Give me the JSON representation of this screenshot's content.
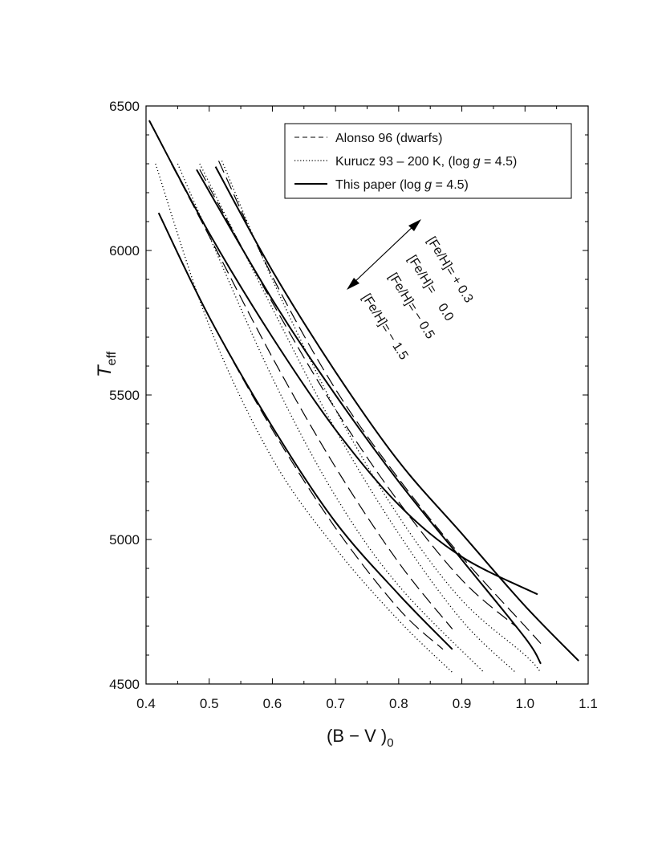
{
  "chart_data": {
    "type": "line",
    "xlabel": "(B − V )",
    "xlabel_sub": "0",
    "ylabel": "T",
    "ylabel_sub": "eff",
    "xlim": [
      0.4,
      1.1
    ],
    "ylim": [
      4500,
      6500
    ],
    "xticks": [
      "0.4",
      "0.5",
      "0.6",
      "0.7",
      "0.8",
      "0.9",
      "1.0",
      "1.1"
    ],
    "yticks": [
      "4500",
      "5000",
      "5500",
      "6000",
      "6500"
    ],
    "grid": false,
    "legend_position": "top-right",
    "legend": [
      {
        "style": "dashed",
        "label_parts": [
          "Alonso 96 (dwarfs)"
        ]
      },
      {
        "style": "dotted",
        "label_parts": [
          "Kurucz 93 – 200 K, (log ",
          "g",
          " = 4.5)"
        ]
      },
      {
        "style": "solid",
        "label_parts": [
          "This paper (log ",
          "g",
          " = 4.5)"
        ]
      }
    ],
    "annotations": [
      "[Fe/H]= + 0.3",
      "[Fe/H]=    0.0",
      "[Fe/H]= − 0.5",
      "[Fe/H]= − 1.5"
    ],
    "series": [
      {
        "group": "This paper",
        "style": "solid",
        "metallicity": "+0.3",
        "x": [
          0.51,
          0.6,
          0.7,
          0.8,
          0.9,
          1.0,
          1.085
        ],
        "y": [
          6290,
          5930,
          5580,
          5270,
          5020,
          4770,
          4580
        ]
      },
      {
        "group": "This paper",
        "style": "solid",
        "metallicity": "0.0",
        "x": [
          0.48,
          0.6,
          0.7,
          0.8,
          0.9,
          1.0,
          1.025
        ],
        "y": [
          6280,
          5830,
          5500,
          5200,
          4930,
          4660,
          4570
        ]
      },
      {
        "group": "This paper",
        "style": "solid",
        "metallicity": "-0.5",
        "x": [
          0.405,
          0.5,
          0.6,
          0.7,
          0.8,
          0.9,
          1.02
        ],
        "y": [
          6450,
          6060,
          5700,
          5380,
          5120,
          4940,
          4810
        ]
      },
      {
        "group": "This paper",
        "style": "solid",
        "metallicity": "-1.5",
        "x": [
          0.42,
          0.5,
          0.6,
          0.7,
          0.8,
          0.885
        ],
        "y": [
          6130,
          5770,
          5390,
          5060,
          4810,
          4620
        ]
      },
      {
        "group": "Alonso 96",
        "style": "dashed",
        "metallicity": "+0.3",
        "x": [
          0.515,
          0.6,
          0.7,
          0.8,
          0.9,
          1.0,
          1.025
        ],
        "y": [
          6310,
          5910,
          5520,
          5210,
          4940,
          4700,
          4640
        ]
      },
      {
        "group": "Alonso 96",
        "style": "dashed",
        "metallicity": "0.0",
        "x": [
          0.485,
          0.6,
          0.7,
          0.8,
          0.9,
          0.985
        ],
        "y": [
          6280,
          5820,
          5450,
          5130,
          4860,
          4700
        ]
      },
      {
        "group": "Alonso 96",
        "style": "dashed",
        "metallicity": "-0.5",
        "x": [
          0.44,
          0.5,
          0.6,
          0.7,
          0.8,
          0.885
        ],
        "y": [
          6300,
          6050,
          5630,
          5250,
          4920,
          4690
        ]
      },
      {
        "group": "Alonso 96",
        "style": "dashed",
        "metallicity": "-1.5",
        "x": [
          0.42,
          0.5,
          0.6,
          0.7,
          0.8,
          0.87
        ],
        "y": [
          6130,
          5770,
          5380,
          5040,
          4760,
          4620
        ]
      },
      {
        "group": "Kurucz 93 − 200 K",
        "style": "dotted",
        "metallicity": "+0.3",
        "x": [
          0.52,
          0.6,
          0.7,
          0.8,
          0.9,
          1.0,
          1.025
        ],
        "y": [
          6310,
          5900,
          5450,
          5080,
          4790,
          4600,
          4540
        ]
      },
      {
        "group": "Kurucz 93 − 200 K",
        "style": "dotted",
        "metallicity": "0.0",
        "x": [
          0.485,
          0.6,
          0.7,
          0.8,
          0.9,
          0.985
        ],
        "y": [
          6300,
          5800,
          5380,
          5020,
          4720,
          4540
        ]
      },
      {
        "group": "Kurucz 93 − 200 K",
        "style": "dotted",
        "metallicity": "-0.5",
        "x": [
          0.45,
          0.5,
          0.6,
          0.7,
          0.8,
          0.935
        ],
        "y": [
          6300,
          6050,
          5560,
          5150,
          4840,
          4540
        ]
      },
      {
        "group": "Kurucz 93 − 200 K",
        "style": "dotted",
        "metallicity": "-1.5",
        "x": [
          0.415,
          0.5,
          0.6,
          0.7,
          0.8,
          0.885
        ],
        "y": [
          6300,
          5740,
          5280,
          4970,
          4720,
          4540
        ]
      }
    ]
  }
}
